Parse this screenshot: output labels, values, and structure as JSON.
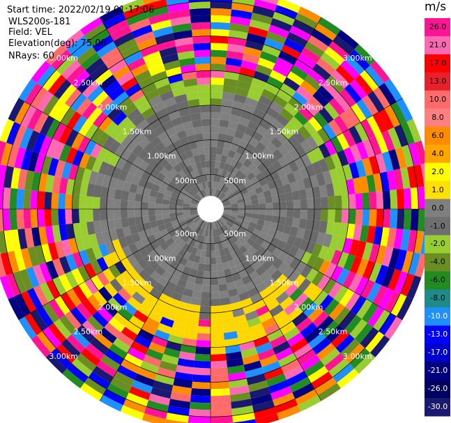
{
  "info": {
    "start_time": "Start time: 2022/02/19 01:17:06",
    "station": "WLS200s-181",
    "field": "Field: VEL",
    "elevation": "Elevation(deg): 75.00",
    "nrays": "NRays: 60"
  },
  "chart_data": {
    "type": "heatmap",
    "projection": "polar-ppi",
    "nrays": 60,
    "range_rings": [
      {
        "label": "500m",
        "range_m": 500
      },
      {
        "label": "1.00km",
        "range_m": 1000
      },
      {
        "label": "1.50km",
        "range_m": 1500
      },
      {
        "label": "2.00km",
        "range_m": 2000
      },
      {
        "label": "2.50km",
        "range_m": 2500
      },
      {
        "label": "3.00km",
        "range_m": 3000
      }
    ],
    "max_range_m": 3200,
    "colorbar": {
      "unit": "m/s",
      "ticks": [
        "26.0",
        "21.0",
        "17.0",
        "13.0",
        "10.0",
        "8.0",
        "6.0",
        "4.0",
        "2.0",
        "1.0",
        "0.0",
        "-1.0",
        "-2.0",
        "-4.0",
        "-6.0",
        "-8.0",
        "-10.0",
        "-13.0",
        "-17.0",
        "-21.0",
        "-26.0",
        "-30.0"
      ],
      "colors": [
        "#ff1493",
        "#ff69b4",
        "#ff0000",
        "#ff2020",
        "#ff6a6a",
        "#ff6a6a",
        "#ff8c00",
        "#ffa500",
        "#ffff00",
        "#ffff00",
        "#7f7f7f",
        "#7f7f7f",
        "#9acd32",
        "#6b8e23",
        "#228b22",
        "#1e90ff",
        "#1e90ff",
        "#0000ff",
        "#0000ff",
        "#000080",
        "#000080",
        "#191970"
      ]
    },
    "description_levels": {
      "inner_gray_m": 1800,
      "ring_green_m": [
        1800,
        2000
      ],
      "ring_yellow_m": [
        1650,
        1900
      ]
    }
  }
}
